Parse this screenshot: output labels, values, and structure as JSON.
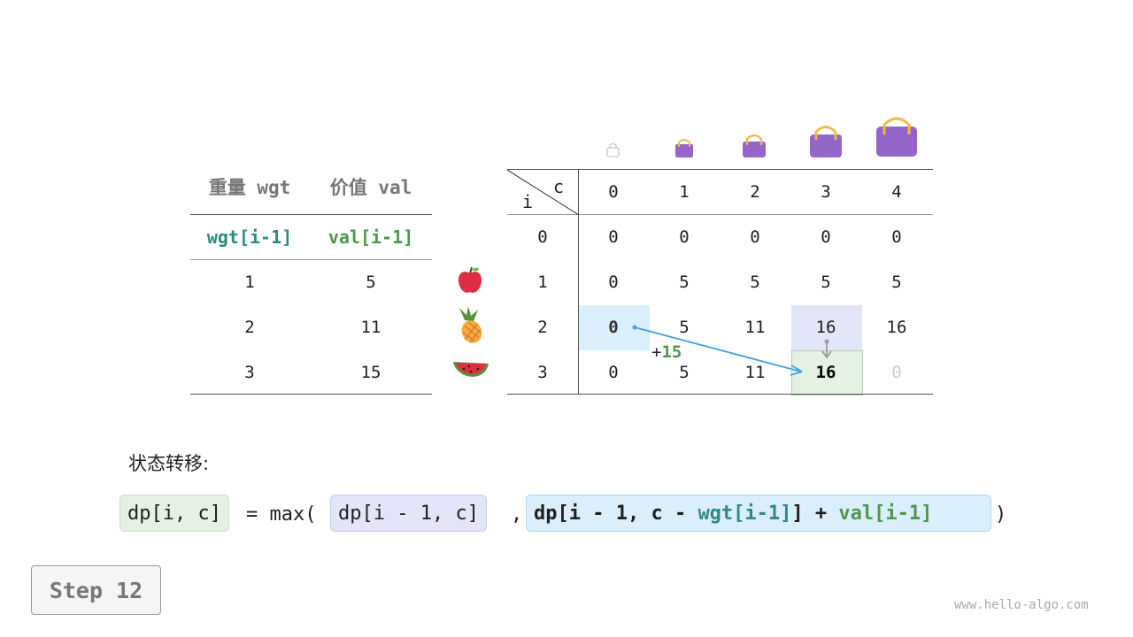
{
  "items_table": {
    "headers": [
      "重量 wgt",
      "价值 val"
    ],
    "subheaders": [
      "wgt[i-1]",
      "val[i-1]"
    ],
    "rows": [
      {
        "wgt": "1",
        "val": "5",
        "icon": "apple-icon"
      },
      {
        "wgt": "2",
        "val": "11",
        "icon": "pineapple-icon"
      },
      {
        "wgt": "3",
        "val": "15",
        "icon": "watermelon-icon"
      }
    ]
  },
  "dp_table": {
    "corner_i": "i",
    "corner_c": "c",
    "capacities": [
      "0",
      "1",
      "2",
      "3",
      "4"
    ],
    "row_labels": [
      "0",
      "1",
      "2",
      "3"
    ],
    "cells": [
      [
        "0",
        "0",
        "0",
        "0",
        "0"
      ],
      [
        "0",
        "5",
        "5",
        "5",
        "5"
      ],
      [
        "0",
        "5",
        "11",
        "16",
        "16"
      ],
      [
        "0",
        "5",
        "11",
        "16",
        "0"
      ]
    ],
    "annotation": {
      "plus": "+",
      "value": "15"
    },
    "colors": {
      "source_cell": "#dbeefb",
      "prev_cell": "#e3e6f9",
      "current_cell": "#e5f2e3",
      "arrow": "#3ea0e6",
      "bag": "#9466c9",
      "bag_handle": "#f5b942"
    }
  },
  "formula": {
    "label": "状态转移:",
    "lhs": "dp[i, c]",
    "eq": "= max(",
    "opt1": "dp[i - 1, c]",
    "comma": ",",
    "opt2_a": "dp[i - 1, c - ",
    "opt2_wgt": "wgt[i-1]",
    "opt2_b": "] + ",
    "opt2_val": "val[i-1]",
    "close": ")"
  },
  "step_button": "Step 12",
  "watermark": "www.hello-algo.com"
}
